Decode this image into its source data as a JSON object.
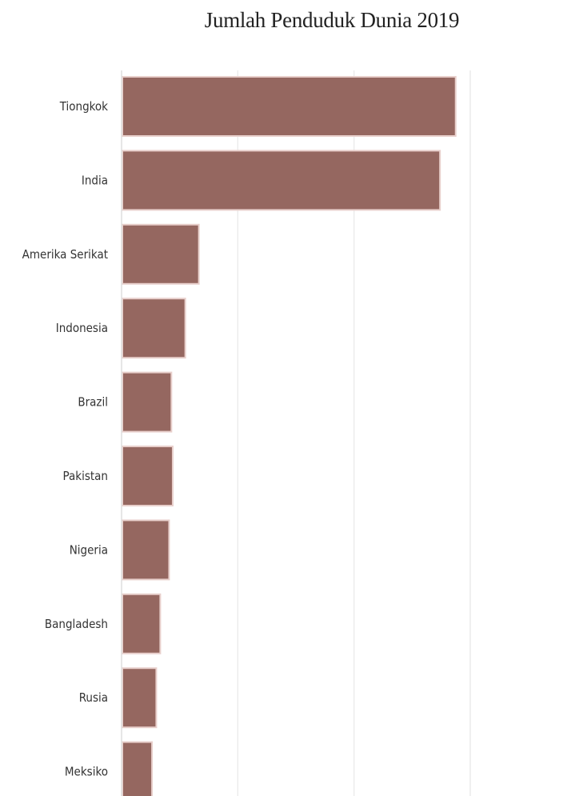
{
  "chart_data": {
    "type": "bar",
    "orientation": "horizontal",
    "title": "Jumlah Penduduk Dunia 2019",
    "categories": [
      "Tiongkok",
      "India",
      "Amerika Serikat",
      "Indonesia",
      "Brazil",
      "Pakistan",
      "Nigeria",
      "Bangladesh",
      "Rusia",
      "Meksiko"
    ],
    "values": [
      1433.8,
      1366.4,
      329.1,
      270.6,
      211.0,
      216.6,
      201.0,
      163.0,
      145.9,
      127.6
    ],
    "xlim": [
      0,
      1500
    ],
    "x_gridlines": [
      500,
      1000,
      1500
    ],
    "bar_color": "#956760",
    "bar_outline_color": "#e8cfcb",
    "grid": true,
    "legend": "none"
  }
}
